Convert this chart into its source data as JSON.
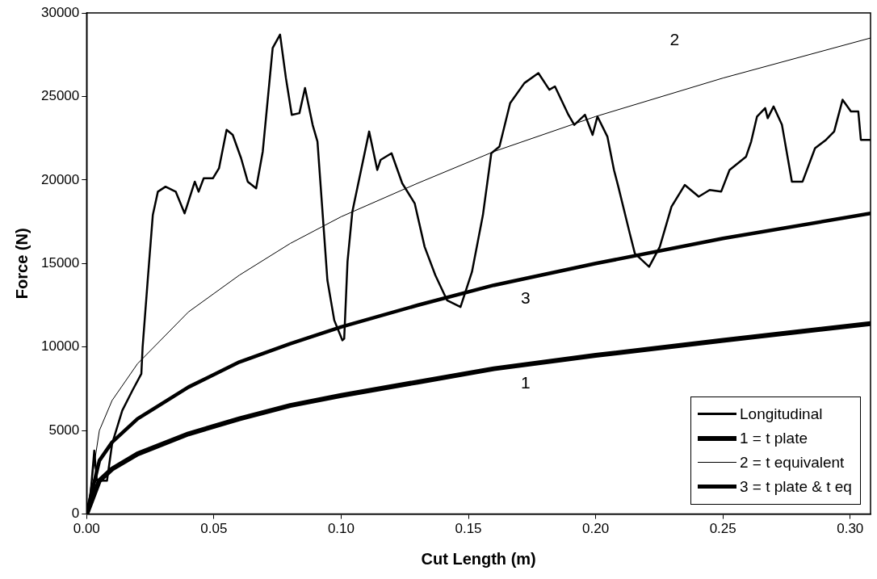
{
  "chart_data": {
    "type": "line",
    "xlabel": "Cut Length (m)",
    "ylabel": "Force (N)",
    "xlim": [
      0,
      0.308
    ],
    "ylim": [
      0,
      30000
    ],
    "xticks": [
      {
        "value": 0,
        "label": "0.00"
      },
      {
        "value": 0.05,
        "label": "0.05"
      },
      {
        "value": 0.1,
        "label": "0.10"
      },
      {
        "value": 0.15,
        "label": "0.15"
      },
      {
        "value": 0.2,
        "label": "0.20"
      },
      {
        "value": 0.25,
        "label": "0.25"
      },
      {
        "value": 0.3,
        "label": "0.30"
      }
    ],
    "yticks": [
      0,
      5000,
      10000,
      15000,
      20000,
      25000,
      30000
    ],
    "grid": false,
    "legend": "bottom right",
    "marker": "none",
    "line_style": "solid",
    "series": [
      {
        "name": "Longitudinal",
        "color": "#000000",
        "x": [
          0.001,
          0.003,
          0.004,
          0.008,
          0.01,
          0.014,
          0.018,
          0.0215,
          0.022,
          0.024,
          0.026,
          0.028,
          0.031,
          0.035,
          0.0385,
          0.0425,
          0.044,
          0.046,
          0.0496,
          0.052,
          0.055,
          0.0574,
          0.0607,
          0.0633,
          0.0666,
          0.0692,
          0.0731,
          0.076,
          0.0783,
          0.0806,
          0.0836,
          0.0858,
          0.0888,
          0.0907,
          0.0946,
          0.0973,
          0.1005,
          0.1012,
          0.1025,
          0.1044,
          0.111,
          0.1142,
          0.1155,
          0.1198,
          0.124,
          0.1289,
          0.1328,
          0.137,
          0.1416,
          0.1469,
          0.1514,
          0.1557,
          0.159,
          0.1622,
          0.1664,
          0.172,
          0.1775,
          0.1818,
          0.184,
          0.1893,
          0.1916,
          0.1958,
          0.1988,
          0.2007,
          0.2046,
          0.2072,
          0.2089,
          0.2134,
          0.2154,
          0.221,
          0.2252,
          0.2298,
          0.235,
          0.2405,
          0.2448,
          0.2493,
          0.2526,
          0.2591,
          0.2611,
          0.2634,
          0.2666,
          0.2676,
          0.2699,
          0.2732,
          0.2771,
          0.2813,
          0.2862,
          0.2905,
          0.2937,
          0.297,
          0.3003,
          0.3032,
          0.3042,
          0.308
        ],
        "values": [
          200,
          3800,
          2000,
          2000,
          4200,
          6200,
          7400,
          8400,
          10000,
          14000,
          17900,
          19300,
          19600,
          19300,
          18000,
          19900,
          19300,
          20100,
          20100,
          20700,
          23000,
          22700,
          21300,
          19900,
          19500,
          21700,
          27900,
          28700,
          26100,
          23900,
          24000,
          25500,
          23300,
          22300,
          14000,
          11600,
          10400,
          10500,
          15100,
          18100,
          22900,
          20600,
          21200,
          21600,
          19800,
          18600,
          16000,
          14300,
          12800,
          12400,
          14500,
          17900,
          21600,
          22000,
          24600,
          25800,
          26400,
          25400,
          25600,
          23900,
          23300,
          23900,
          22700,
          23800,
          22600,
          20600,
          19600,
          16800,
          15600,
          14800,
          16000,
          18400,
          19700,
          19000,
          19400,
          19300,
          20600,
          21400,
          22300,
          23800,
          24300,
          23700,
          24400,
          23300,
          19900,
          19900,
          21900,
          22400,
          22900,
          24800,
          24100,
          24100,
          22400,
          22400
        ]
      },
      {
        "name": "1 = t plate",
        "color": "#000000",
        "x": [
          0,
          0.005,
          0.01,
          0.02,
          0.04,
          0.06,
          0.08,
          0.1,
          0.13,
          0.16,
          0.2,
          0.25,
          0.308
        ],
        "values": [
          0,
          2000,
          2700,
          3600,
          4800,
          5700,
          6500,
          7100,
          7900,
          8700,
          9500,
          10400,
          11400
        ]
      },
      {
        "name": "2 = t equivalent",
        "color": "#000000",
        "x": [
          0,
          0.005,
          0.01,
          0.02,
          0.04,
          0.06,
          0.08,
          0.1,
          0.13,
          0.16,
          0.2,
          0.25,
          0.308
        ],
        "values": [
          0,
          5000,
          6800,
          9000,
          12100,
          14300,
          16200,
          17800,
          19800,
          21700,
          23800,
          26100,
          28500
        ]
      },
      {
        "name": "3 = t plate & t eq",
        "color": "#000000",
        "x": [
          0,
          0.005,
          0.01,
          0.02,
          0.04,
          0.06,
          0.08,
          0.1,
          0.13,
          0.16,
          0.2,
          0.25,
          0.308
        ],
        "values": [
          0,
          3200,
          4300,
          5700,
          7600,
          9100,
          10200,
          11200,
          12500,
          13700,
          15000,
          16500,
          18000
        ]
      }
    ],
    "annotations": [
      "2",
      "3",
      "1"
    ]
  }
}
